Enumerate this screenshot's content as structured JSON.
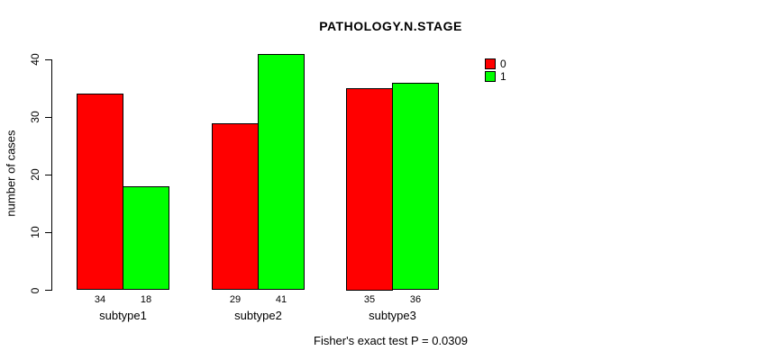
{
  "chart_data": {
    "type": "bar",
    "title": "PATHOLOGY.N.STAGE",
    "xlabel": "",
    "ylabel": "number of cases",
    "categories": [
      "subtype1",
      "subtype2",
      "subtype3"
    ],
    "series": [
      {
        "name": "0",
        "color": "#FF0000",
        "values": [
          34,
          29,
          35
        ]
      },
      {
        "name": "1",
        "color": "#00FF00",
        "values": [
          18,
          41,
          36
        ]
      }
    ],
    "value_labels": [
      [
        34,
        18
      ],
      [
        29,
        41
      ],
      [
        35,
        36
      ]
    ],
    "y_ticks": [
      0,
      10,
      20,
      30,
      40
    ],
    "ylim": [
      0,
      41
    ],
    "grid": false,
    "legend_position": "top-right",
    "bar_border_color": "#000000",
    "footer": "Fisher's exact test P = 0.0309"
  }
}
